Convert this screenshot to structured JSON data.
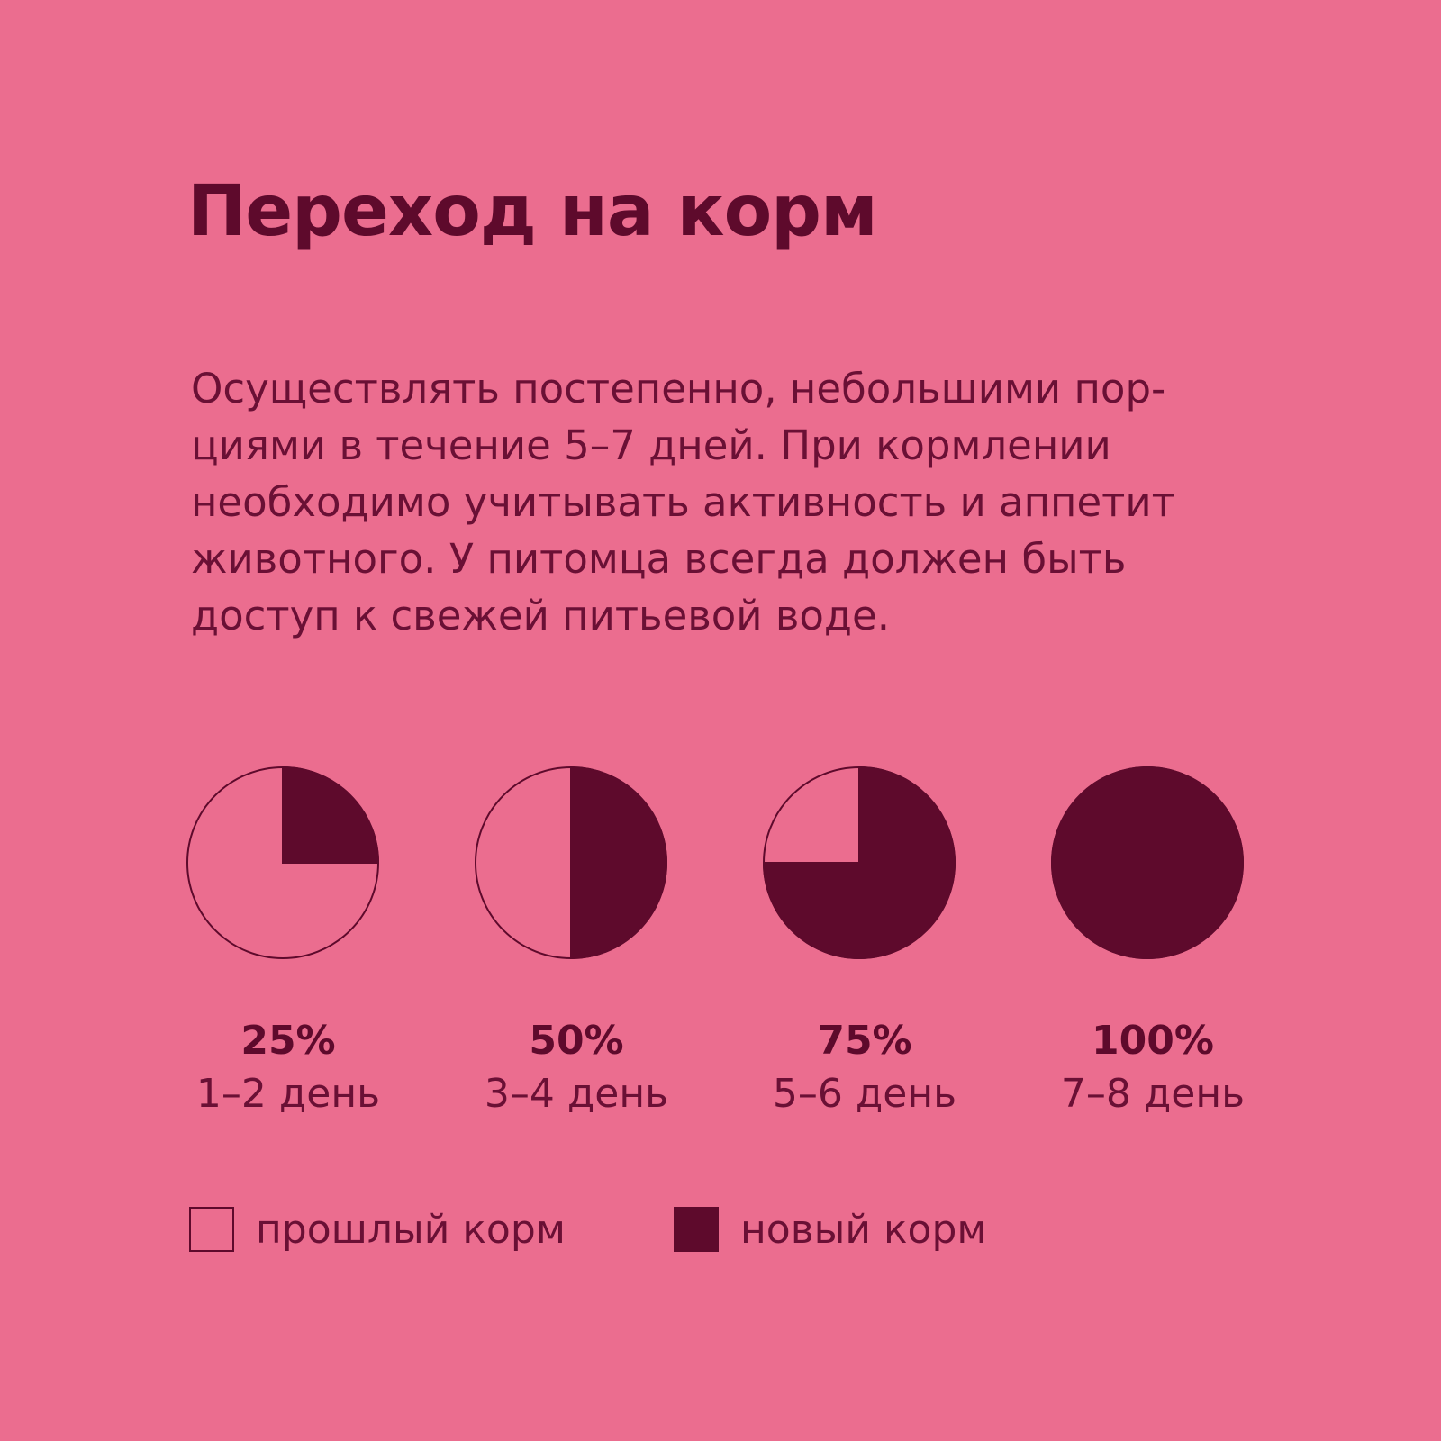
{
  "title": "Переход на корм",
  "description_lines": [
    "Осуществлять постепенно, небольшими пор-",
    "циями в течение 5–7 дней. При кормлении",
    "необходимо учитывать активность и аппетит",
    "животного. У питомца всегда должен быть",
    "доступ к свежей питьевой воде."
  ],
  "colors": {
    "background": "#EB6D8F",
    "new_food": "#5E0A2C",
    "old_food": "#EB6D8F"
  },
  "chart_data": {
    "type": "pie",
    "stages": [
      {
        "percent_label": "25%",
        "days_label": "1–2 день",
        "new_fraction": 0.25
      },
      {
        "percent_label": "50%",
        "days_label": "3–4 день",
        "new_fraction": 0.5
      },
      {
        "percent_label": "75%",
        "days_label": "5–6 день",
        "new_fraction": 0.75
      },
      {
        "percent_label": "100%",
        "days_label": "7–8 день",
        "new_fraction": 1.0
      }
    ],
    "legend": [
      {
        "label": "прошлый корм",
        "color": "#EB6D8F"
      },
      {
        "label": "новый корм",
        "color": "#5E0A2C"
      }
    ]
  }
}
